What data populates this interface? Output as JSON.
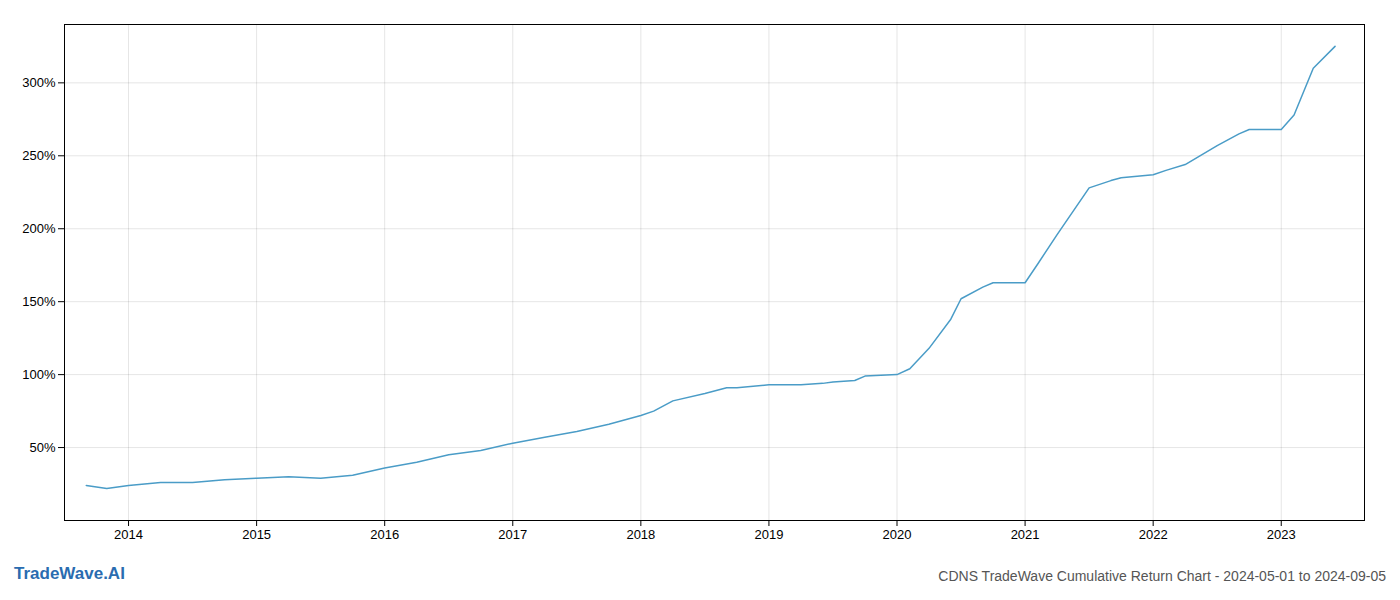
{
  "chart_data": {
    "type": "line",
    "title": "CDNS TradeWave Cumulative Return Chart - 2024-05-01 to 2024-09-05",
    "annotations": [
      "TradeWave.AI"
    ],
    "x": [
      2013.67,
      2013.83,
      2014.0,
      2014.25,
      2014.5,
      2014.75,
      2015.0,
      2015.25,
      2015.5,
      2015.75,
      2016.0,
      2016.25,
      2016.5,
      2016.75,
      2017.0,
      2017.25,
      2017.5,
      2017.75,
      2018.0,
      2018.1,
      2018.25,
      2018.5,
      2018.67,
      2018.75,
      2019.0,
      2019.1,
      2019.25,
      2019.42,
      2019.5,
      2019.67,
      2019.75,
      2020.0,
      2020.1,
      2020.25,
      2020.42,
      2020.5,
      2020.67,
      2020.75,
      2021.0,
      2021.1,
      2021.25,
      2021.5,
      2021.67,
      2021.75,
      2022.0,
      2022.1,
      2022.25,
      2022.5,
      2022.67,
      2022.75,
      2023.0,
      2023.1,
      2023.25,
      2023.42
    ],
    "values": [
      24,
      22,
      24,
      26,
      26,
      28,
      29,
      30,
      29,
      31,
      36,
      40,
      45,
      48,
      53,
      57,
      61,
      66,
      72,
      75,
      82,
      87,
      91,
      91,
      93,
      93,
      93,
      94,
      95,
      96,
      99,
      100,
      104,
      118,
      138,
      152,
      160,
      163,
      163,
      176,
      196,
      228,
      233,
      235,
      237,
      240,
      244,
      257,
      265,
      268,
      268,
      278,
      310,
      325
    ],
    "color": "#4a9cc7",
    "xlim": [
      2013.5,
      2023.65
    ],
    "xticks": [
      2014,
      2015,
      2016,
      2017,
      2018,
      2019,
      2020,
      2021,
      2022,
      2023
    ],
    "ylim": [
      0,
      340
    ],
    "yticks": [
      {
        "value": 50,
        "label": "50%"
      },
      {
        "value": 100,
        "label": "100%"
      },
      {
        "value": 150,
        "label": "150%"
      },
      {
        "value": 200,
        "label": "200%"
      },
      {
        "value": 250,
        "label": "250%"
      },
      {
        "value": 300,
        "label": "300%"
      }
    ],
    "grid": true
  }
}
